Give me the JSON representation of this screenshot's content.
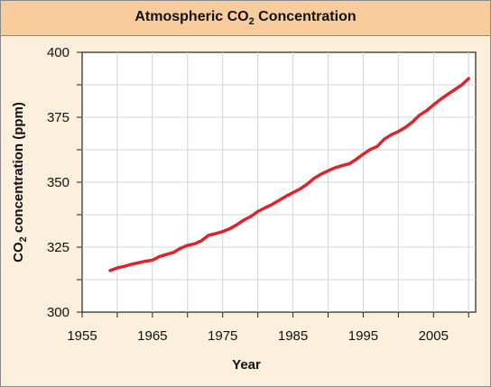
{
  "chart_data": {
    "type": "line",
    "title": "Atmospheric CO",
    "title_subscript": "2",
    "title_suffix": " Concentration",
    "xlabel": "Year",
    "ylabel": "CO",
    "ylabel_subscript": "2",
    "ylabel_suffix": " concentration (ppm)",
    "xlim": [
      1955,
      2011
    ],
    "ylim": [
      300,
      400
    ],
    "xticks": [
      1955,
      1965,
      1975,
      1985,
      1995,
      2005
    ],
    "yticks": [
      300,
      325,
      350,
      375,
      400
    ],
    "grid": true,
    "series": [
      {
        "color": "#e0222b",
        "x": [
          1959,
          1960,
          1961,
          1962,
          1963,
          1964,
          1965,
          1966,
          1967,
          1968,
          1969,
          1970,
          1971,
          1972,
          1973,
          1974,
          1975,
          1976,
          1977,
          1978,
          1979,
          1980,
          1981,
          1982,
          1983,
          1984,
          1985,
          1986,
          1987,
          1988,
          1989,
          1990,
          1991,
          1992,
          1993,
          1994,
          1995,
          1996,
          1997,
          1998,
          1999,
          2000,
          2001,
          2002,
          2003,
          2004,
          2005,
          2006,
          2007,
          2008,
          2009,
          2010
        ],
        "y": [
          316.0,
          317.0,
          317.6,
          318.4,
          319.0,
          319.6,
          320.0,
          321.4,
          322.2,
          323.0,
          324.6,
          325.7,
          326.3,
          327.5,
          329.6,
          330.2,
          331.0,
          332.1,
          333.6,
          335.4,
          336.8,
          338.7,
          340.1,
          341.4,
          343.0,
          344.6,
          346.0,
          347.4,
          349.2,
          351.5,
          353.1,
          354.4,
          355.6,
          356.4,
          357.1,
          358.8,
          360.8,
          362.6,
          363.8,
          366.6,
          368.3,
          369.5,
          371.1,
          373.2,
          375.8,
          377.5,
          379.8,
          381.9,
          383.8,
          385.6,
          387.4,
          389.9
        ]
      }
    ]
  }
}
